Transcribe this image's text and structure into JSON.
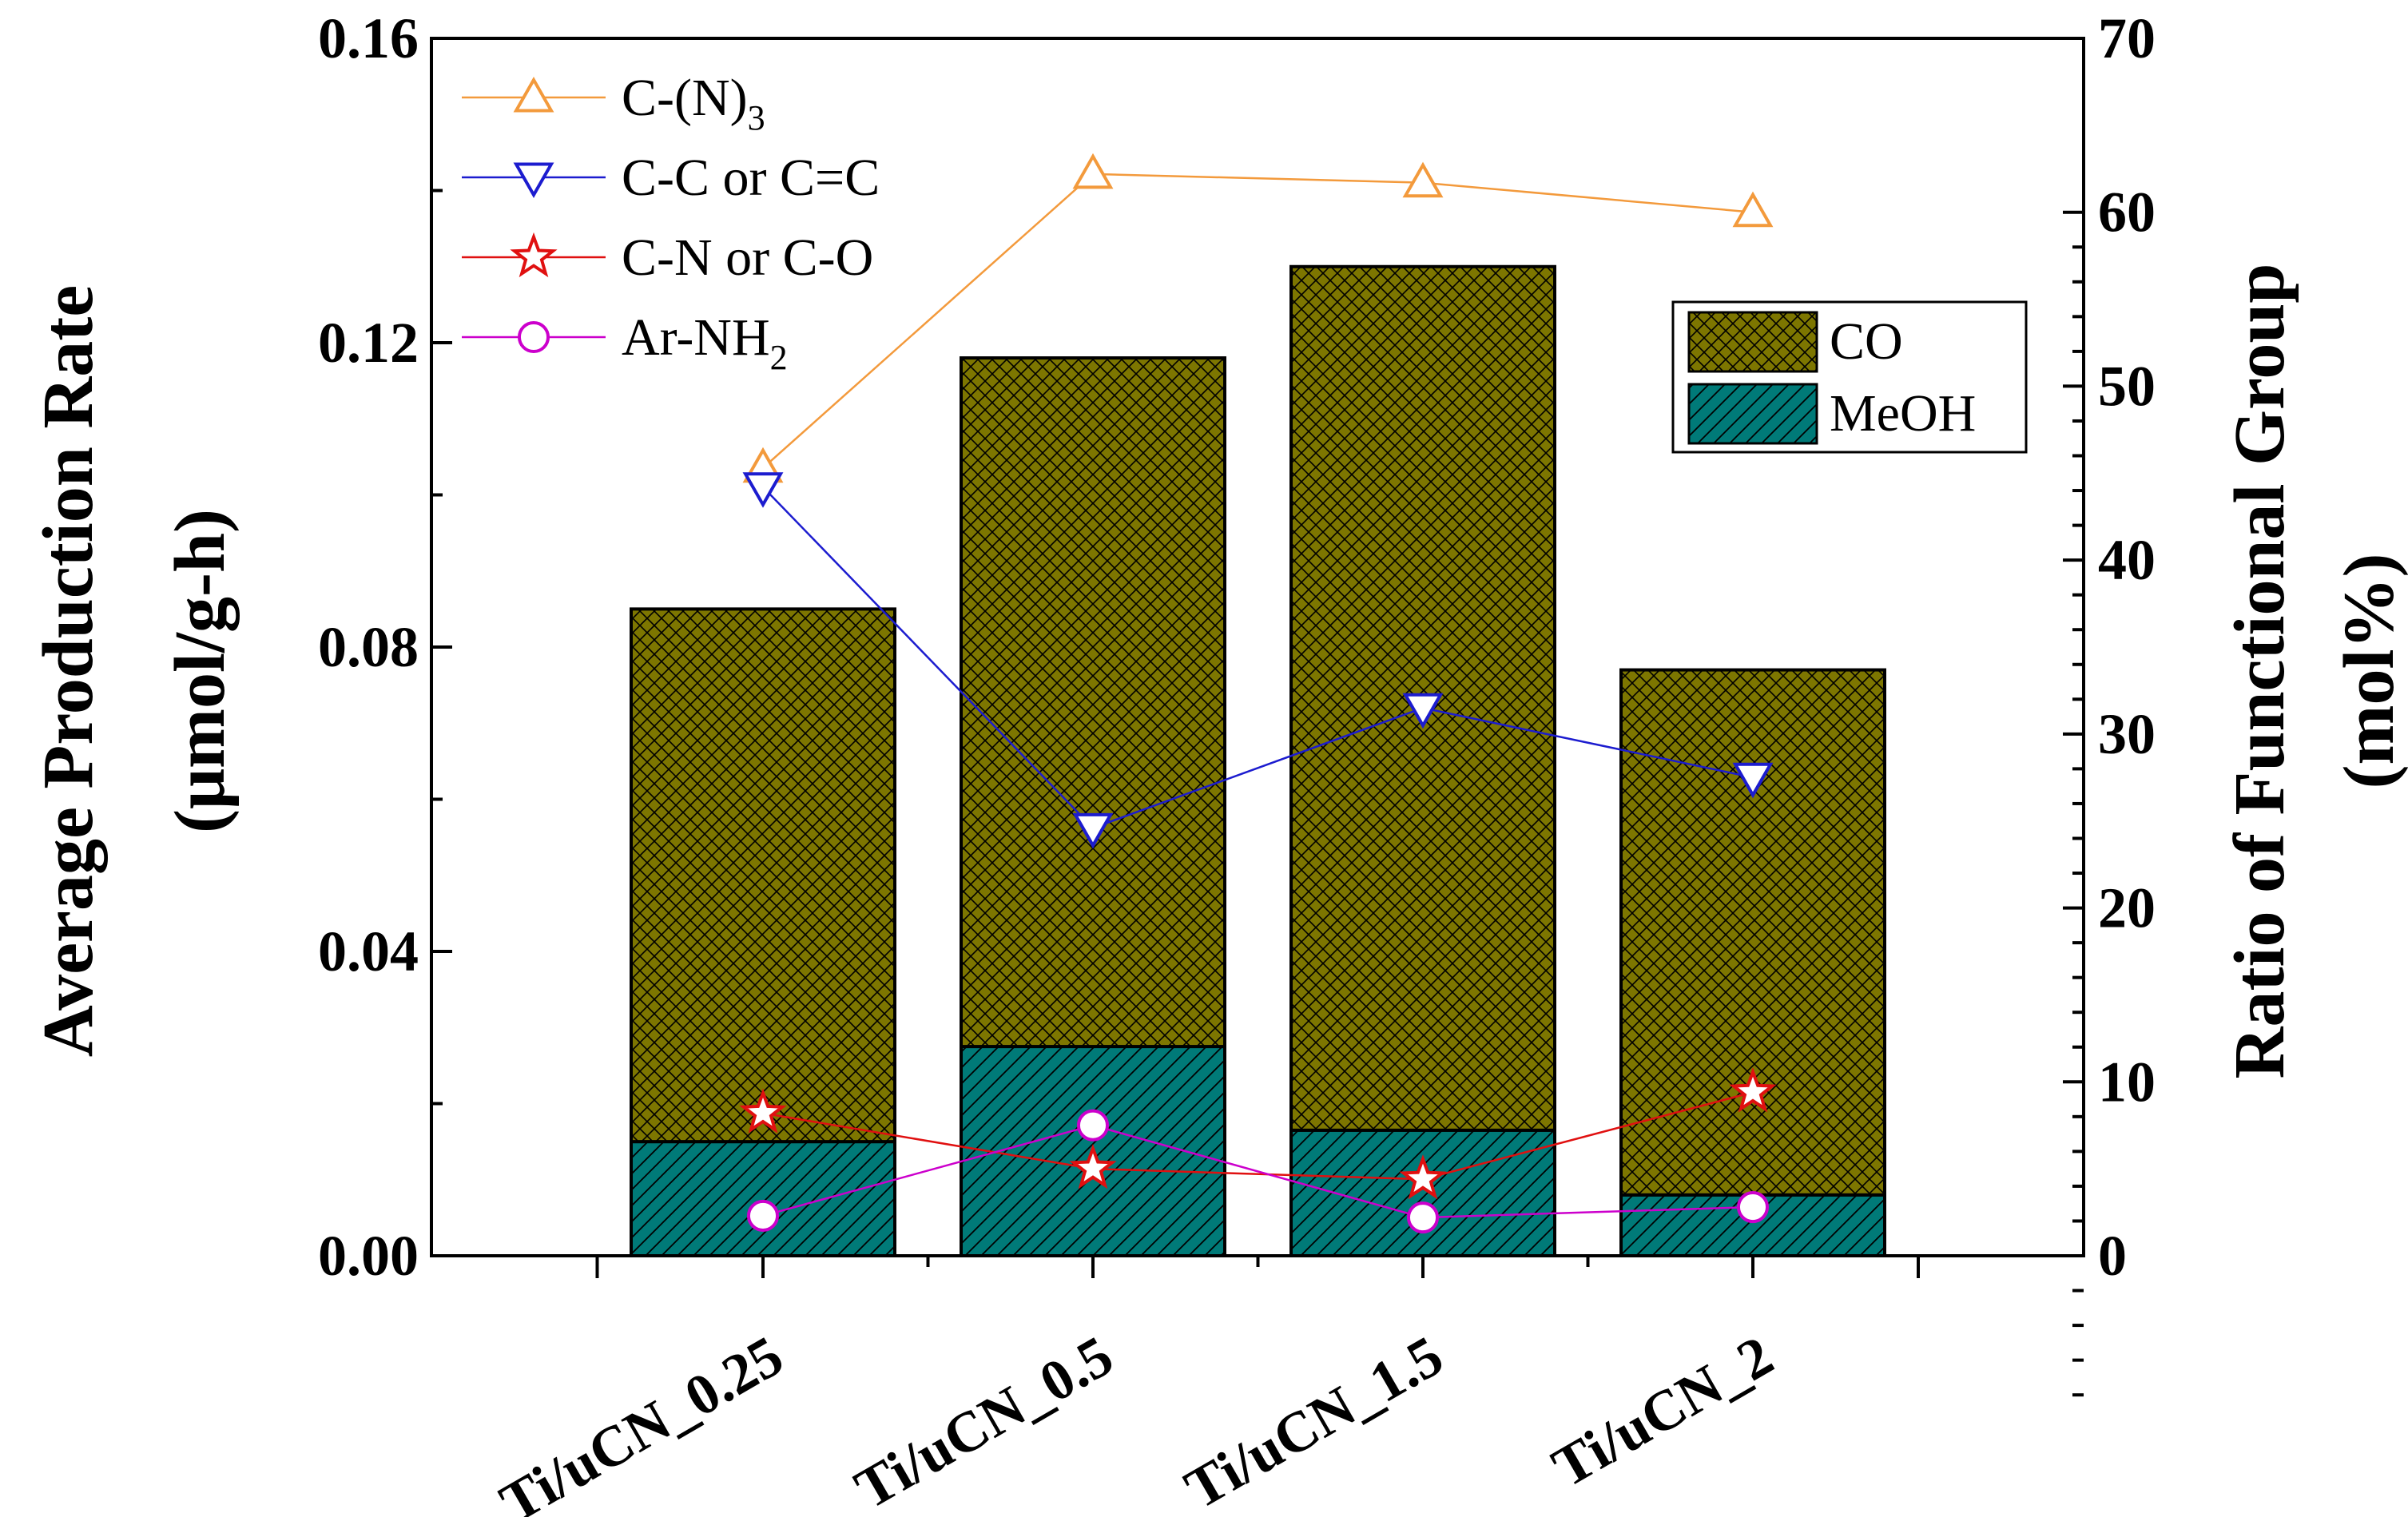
{
  "chart_data": {
    "type": "bar",
    "subtype": "stacked-bar-with-line-overlay",
    "categories": [
      "Ti/uCN_0.25",
      "Ti/uCN_0.5",
      "Ti/uCN_1.5",
      "Ti/uCN_2"
    ],
    "left_axis": {
      "label_line1": "Average Production Rate",
      "label_line2": "(μmol/g-h)",
      "ylim": [
        0,
        0.16
      ],
      "ticks": [
        "0.00",
        "0.04",
        "0.08",
        "0.12",
        "0.16"
      ]
    },
    "right_axis": {
      "label_line1": "Ratio of Functional Group",
      "label_line2": "(mol%)",
      "ylim": [
        0,
        70
      ],
      "ticks": [
        "0",
        "10",
        "20",
        "30",
        "40",
        "50",
        "60",
        "70"
      ]
    },
    "bar_series": [
      {
        "name": "MeOH",
        "color": "#007a78",
        "hatch": "diagonal",
        "values": [
          0.015,
          0.0275,
          0.0165,
          0.008
        ]
      },
      {
        "name": "CO",
        "color": "#7d7600",
        "hatch": "crosshatch",
        "values": [
          0.07,
          0.0905,
          0.1135,
          0.069
        ]
      }
    ],
    "line_series": [
      {
        "name": "C-(N)",
        "sub": "3",
        "color": "#f39a3c",
        "marker": "triangle-up",
        "values": [
          45.3,
          62.2,
          61.7,
          60.0
        ]
      },
      {
        "name": "C-C or C=C",
        "sub": "",
        "color": "#1c1ccf",
        "marker": "triangle-down",
        "values": [
          44.2,
          24.6,
          31.5,
          27.5
        ]
      },
      {
        "name": "C-N or C-O",
        "sub": "",
        "color": "#e01010",
        "marker": "star",
        "values": [
          8.2,
          5.0,
          4.4,
          9.4
        ]
      },
      {
        "name": "Ar-NH",
        "sub": "2",
        "color": "#cc00cc",
        "marker": "circle",
        "values": [
          2.3,
          7.5,
          2.2,
          2.8
        ]
      }
    ]
  }
}
